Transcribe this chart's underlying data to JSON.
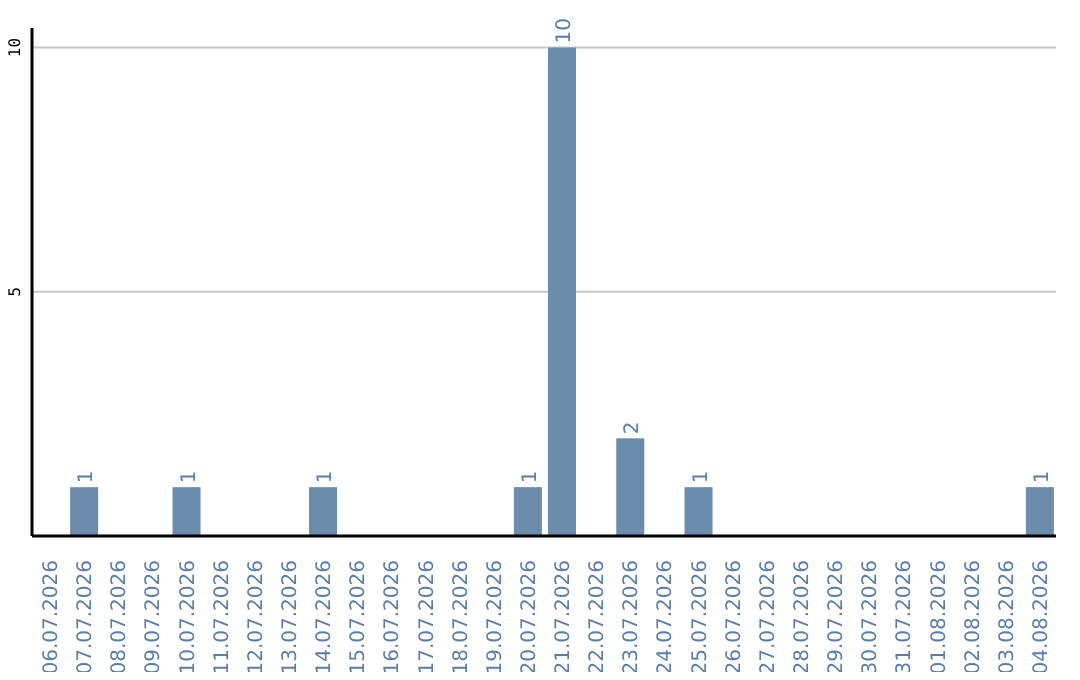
{
  "chart_data": {
    "type": "bar",
    "categories": [
      "06.07.2026",
      "07.07.2026",
      "08.07.2026",
      "09.07.2026",
      "10.07.2026",
      "11.07.2026",
      "12.07.2026",
      "13.07.2026",
      "14.07.2026",
      "15.07.2026",
      "16.07.2026",
      "17.07.2026",
      "18.07.2026",
      "19.07.2026",
      "20.07.2026",
      "21.07.2026",
      "22.07.2026",
      "23.07.2026",
      "24.07.2026",
      "25.07.2026",
      "26.07.2026",
      "27.07.2026",
      "28.07.2026",
      "29.07.2026",
      "30.07.2026",
      "31.07.2026",
      "01.08.2026",
      "02.08.2026",
      "03.08.2026",
      "04.08.2026"
    ],
    "values": [
      0,
      1,
      0,
      0,
      1,
      0,
      0,
      0,
      1,
      0,
      0,
      0,
      0,
      0,
      1,
      10,
      0,
      2,
      0,
      1,
      0,
      0,
      0,
      0,
      0,
      0,
      0,
      0,
      0,
      1
    ],
    "value_labels": [
      null,
      "1",
      null,
      null,
      "1",
      null,
      null,
      null,
      "1",
      null,
      null,
      null,
      null,
      null,
      "1",
      "10",
      null,
      "2",
      null,
      "1",
      null,
      null,
      null,
      null,
      null,
      null,
      null,
      null,
      null,
      "1"
    ],
    "color": "#6b8cab",
    "ylim": [
      0,
      10.4
    ],
    "yticks": [
      5,
      10
    ],
    "grid": "y"
  }
}
